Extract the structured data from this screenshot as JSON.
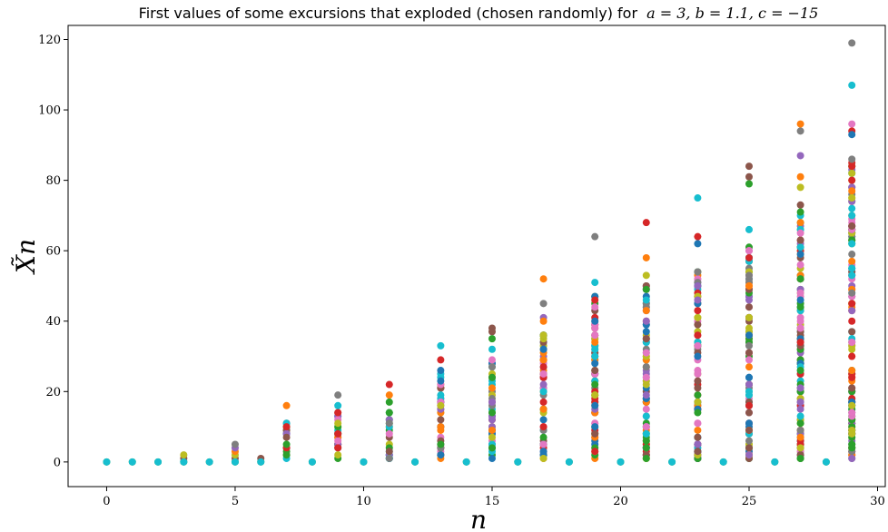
{
  "chart_data": {
    "type": "scatter",
    "title": "First values of some excursions that exploded (chosen randomly) for a = 3,  b = 1.1,  c = −15",
    "title_prefix": "First values of some excursions that exploded (chosen randomly) for",
    "title_math": "a = 3,  b = 1.1,  c = −15",
    "xlabel": "n",
    "ylabel": "X̃n",
    "xlim": [
      -1.5,
      30.3
    ],
    "ylim": [
      -7,
      124
    ],
    "xticks": [
      0,
      5,
      10,
      15,
      20,
      25,
      30
    ],
    "yticks": [
      0,
      20,
      40,
      60,
      80,
      100,
      120
    ],
    "grid": false,
    "legend": "none",
    "palette": [
      "#1f77b4",
      "#ff7f0e",
      "#2ca02c",
      "#d62728",
      "#9467bd",
      "#8c564b",
      "#e377c2",
      "#7f7f7f",
      "#bcbd22",
      "#17becf"
    ],
    "even_step_values": [
      {
        "x": 0,
        "y": [
          0
        ]
      },
      {
        "x": 1,
        "y": [
          0
        ]
      },
      {
        "x": 2,
        "y": [
          0
        ]
      },
      {
        "x": 3,
        "y": [
          0,
          1,
          2
        ]
      },
      {
        "x": 4,
        "y": [
          0
        ]
      },
      {
        "x": 5,
        "y": [
          0,
          1,
          2,
          3,
          4,
          5
        ]
      },
      {
        "x": 6,
        "y": [
          0,
          1
        ]
      },
      {
        "x": 8,
        "y": [
          0
        ]
      },
      {
        "x": 10,
        "y": [
          0
        ]
      },
      {
        "x": 12,
        "y": [
          0
        ]
      },
      {
        "x": 14,
        "y": [
          0
        ]
      },
      {
        "x": 16,
        "y": [
          0
        ]
      },
      {
        "x": 18,
        "y": [
          0
        ]
      },
      {
        "x": 20,
        "y": [
          0
        ]
      },
      {
        "x": 22,
        "y": [
          0
        ]
      },
      {
        "x": 24,
        "y": [
          0
        ]
      },
      {
        "x": 26,
        "y": [
          0
        ]
      },
      {
        "x": 28,
        "y": [
          0
        ]
      }
    ],
    "odd_steps": [
      {
        "x": 7,
        "max": 16,
        "extras": []
      },
      {
        "x": 9,
        "max": 19,
        "extras": [
          16
        ]
      },
      {
        "x": 11,
        "max": 22,
        "extras": [
          19
        ]
      },
      {
        "x": 13,
        "max": 33,
        "extras": [
          29,
          26
        ]
      },
      {
        "x": 15,
        "max": 38,
        "extras": [
          37,
          35,
          32,
          29
        ]
      },
      {
        "x": 17,
        "max": 52,
        "extras": [
          45,
          41,
          40,
          36
        ]
      },
      {
        "x": 19,
        "max": 64,
        "extras": [
          51,
          44,
          41,
          40
        ]
      },
      {
        "x": 21,
        "max": 68,
        "extras": [
          58,
          53,
          50,
          49,
          46
        ]
      },
      {
        "x": 23,
        "max": 75,
        "extras": [
          64,
          62,
          54,
          50
        ]
      },
      {
        "x": 25,
        "max": 84,
        "extras": [
          81,
          79,
          66,
          60,
          58
        ]
      },
      {
        "x": 27,
        "max": 96,
        "extras": [
          94,
          87,
          81,
          78,
          73,
          71,
          66,
          65
        ]
      },
      {
        "x": 29,
        "max": 119,
        "extras": [
          107,
          96,
          94,
          93,
          86,
          78,
          77,
          75,
          67,
          63,
          62
        ]
      }
    ]
  }
}
